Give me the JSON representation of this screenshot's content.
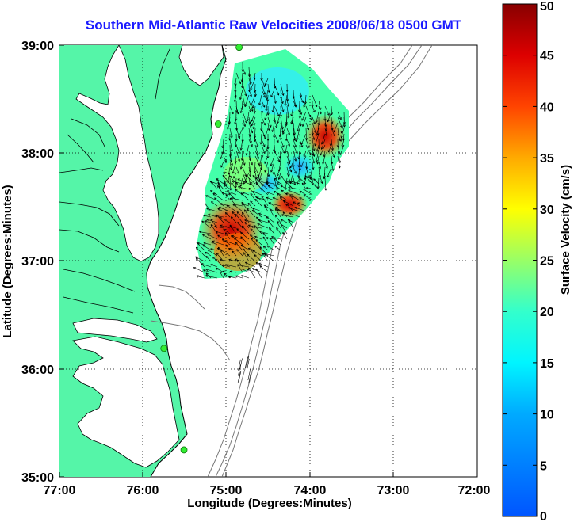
{
  "title": "Southern Mid-Atlantic Raw Velocities 2008/06/18 0500 GMT",
  "x_axis": {
    "label": "Longitude (Degrees:Minutes)",
    "ticks": [
      "77:00",
      "76:00",
      "75:00",
      "74:00",
      "73:00",
      "72:00"
    ],
    "range": [
      -77,
      -72
    ]
  },
  "y_axis": {
    "label": "Latitude (Degrees:Minutes)",
    "ticks": [
      "39:00",
      "38:00",
      "37:00",
      "36:00",
      "35:00"
    ],
    "range": [
      35,
      39
    ]
  },
  "colorbar": {
    "label": "Surface Velocity (cm/s)",
    "ticks": [
      "50",
      "45",
      "40",
      "35",
      "30",
      "25",
      "20",
      "15",
      "10",
      "5",
      "0"
    ],
    "range": [
      0,
      50
    ],
    "colormap": "jet"
  },
  "colors": {
    "land": "#55f5a8",
    "title": "#1a1aff",
    "station": "#33ee33"
  },
  "grid": "dotted",
  "stations": [
    {
      "lon": -74.85,
      "lat": 38.98
    },
    {
      "lon": -75.1,
      "lat": 38.27
    },
    {
      "lon": -75.75,
      "lat": 36.19
    },
    {
      "lon": -75.51,
      "lat": 35.25
    }
  ]
}
